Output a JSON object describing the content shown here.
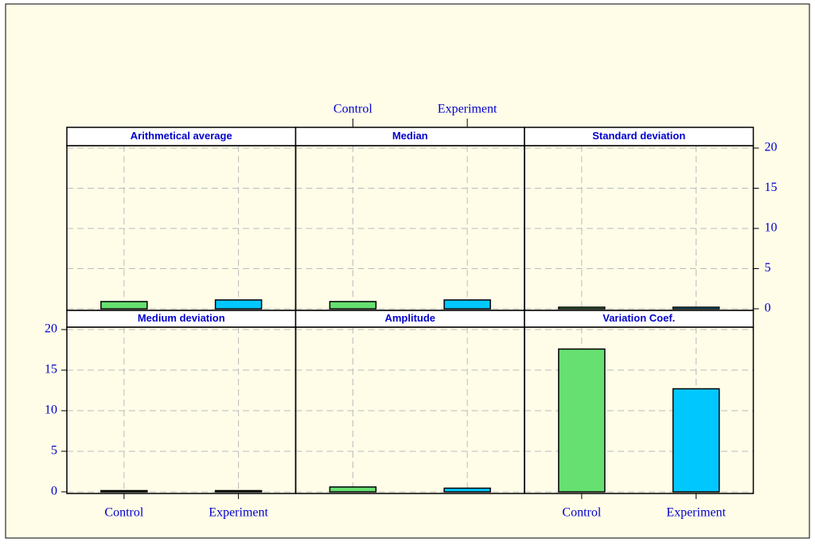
{
  "chart_data": {
    "type": "bar",
    "categories": [
      "Control",
      "Experiment"
    ],
    "colors": [
      "#66e070",
      "#00c8ff"
    ],
    "ylim": [
      -0.2,
      20.3
    ],
    "yticks": [
      0,
      5,
      10,
      15,
      20
    ],
    "grid": true,
    "panels": [
      {
        "title": "Arithmetical average",
        "values": [
          0.9,
          1.1
        ]
      },
      {
        "title": "Median",
        "values": [
          0.9,
          1.1
        ]
      },
      {
        "title": "Standard  deviation",
        "values": [
          0.2,
          0.2
        ]
      },
      {
        "title": "Medium deviation",
        "values": [
          0.15,
          0.15
        ]
      },
      {
        "title": "Amplitude",
        "values": [
          0.6,
          0.45
        ]
      },
      {
        "title": "Variation Coef.",
        "values": [
          17.6,
          12.7
        ]
      }
    ]
  }
}
